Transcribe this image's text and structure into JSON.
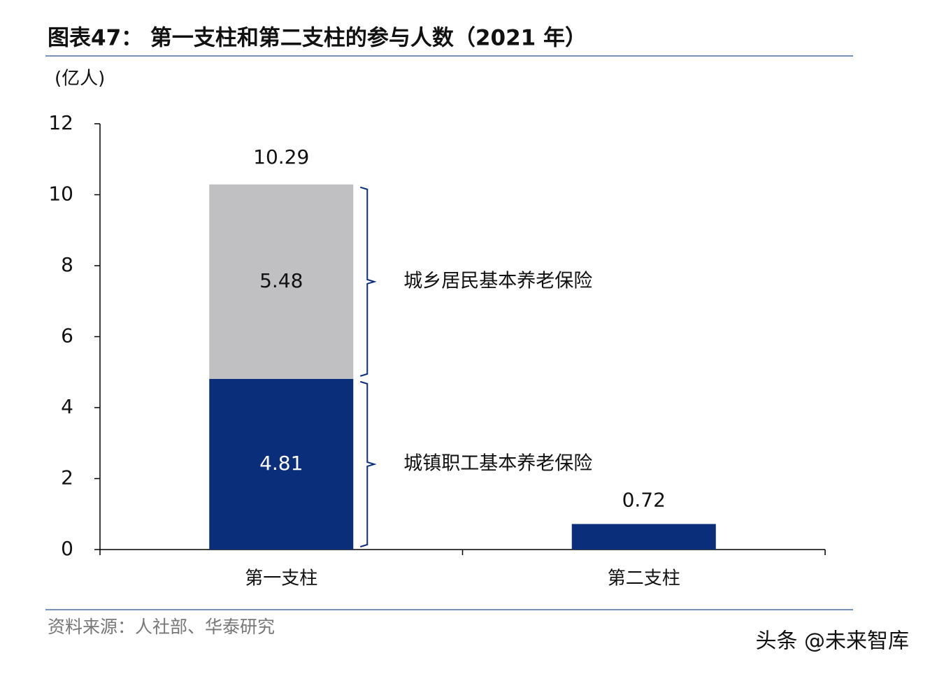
{
  "chart_data": {
    "type": "stacked_bar",
    "title": "图表47：  第一支柱和第二支柱的参与人数（2021 年）",
    "y_unit": "(亿人)",
    "source": "资料来源：人社部、华泰研究",
    "watermark": "头条 @未来智库",
    "categories": [
      "第一支柱",
      "第二支柱"
    ],
    "series": [
      {
        "name": "城镇职工基本养老保险",
        "color": "#0b2e7a",
        "values": [
          4.81,
          null
        ]
      },
      {
        "name": "城乡居民基本养老保险",
        "color": "#c0c0c2",
        "values": [
          5.48,
          null
        ]
      },
      {
        "color": "#0b2e7a",
        "values": [
          null,
          0.72
        ]
      }
    ],
    "totals": [
      10.29,
      null
    ],
    "ylim": [
      0,
      12
    ],
    "yticks": [
      0,
      2,
      4,
      6,
      8,
      10,
      12
    ],
    "grid": false
  }
}
